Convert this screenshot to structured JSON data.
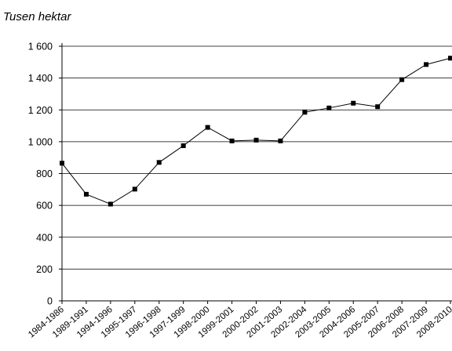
{
  "chart_data": {
    "type": "line",
    "title": "",
    "ylabel": "Tusen hektar",
    "xlabel": "",
    "ylim": [
      0,
      1600
    ],
    "yticks": [
      0,
      200,
      400,
      600,
      800,
      1000,
      1200,
      1400,
      1600
    ],
    "ytick_labels": [
      "0",
      "200",
      "400",
      "600",
      "800",
      "1 000",
      "1 200",
      "1 400",
      "1 600"
    ],
    "grid": "horizontal",
    "legend": "none",
    "categories": [
      "1984-1986",
      "1989-1991",
      "1994-1996",
      "1995-1997",
      "1996-1998",
      "1997-1999",
      "1998-2000",
      "1999-2001",
      "2000-2002",
      "2001-2003",
      "2002-2004",
      "2003-2005",
      "2004-2006",
      "2005-2007",
      "2006-2008",
      "2007-2009",
      "2008-2010"
    ],
    "series": [
      {
        "values": [
          865,
          670,
          608,
          702,
          870,
          975,
          1090,
          1005,
          1010,
          1005,
          1185,
          1212,
          1242,
          1220,
          1390,
          1485,
          1525
        ]
      }
    ],
    "colors": {
      "line": "#000000",
      "marker": "#000000",
      "grid": "#000000",
      "axis": "#000000"
    },
    "marker_shape": "square"
  }
}
